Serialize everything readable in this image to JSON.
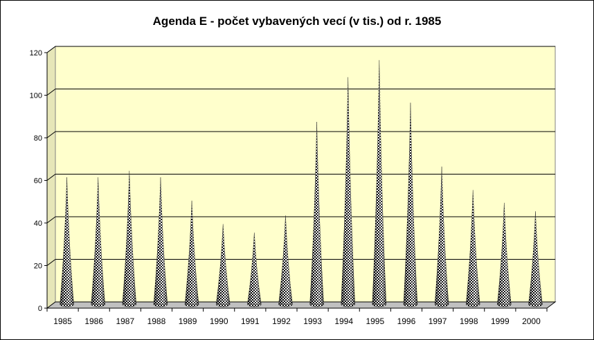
{
  "chart_data": {
    "type": "bar",
    "style": "3d-cone",
    "title": "Agenda E - počet vybavených vecí (v tis.) od r. 1985",
    "xlabel": "",
    "ylabel": "",
    "categories": [
      "1985",
      "1986",
      "1987",
      "1988",
      "1989",
      "1990",
      "1991",
      "1992",
      "1993",
      "1994",
      "1995",
      "1996",
      "1997",
      "1998",
      "1999",
      "2000"
    ],
    "values": [
      60,
      60,
      63,
      60,
      49,
      38,
      34,
      42,
      86,
      107,
      115,
      95,
      65,
      54,
      48,
      44
    ],
    "ylim": [
      0,
      120
    ],
    "yticks": [
      0,
      20,
      40,
      60,
      80,
      100,
      120
    ],
    "grid": true,
    "legend": "none",
    "colors": {
      "plot_background": "#FFFFCC",
      "floor": "#C0C0C0",
      "gridline": "#000000",
      "cone_dark": "#000000",
      "cone_light": "#FFFFFF"
    }
  }
}
